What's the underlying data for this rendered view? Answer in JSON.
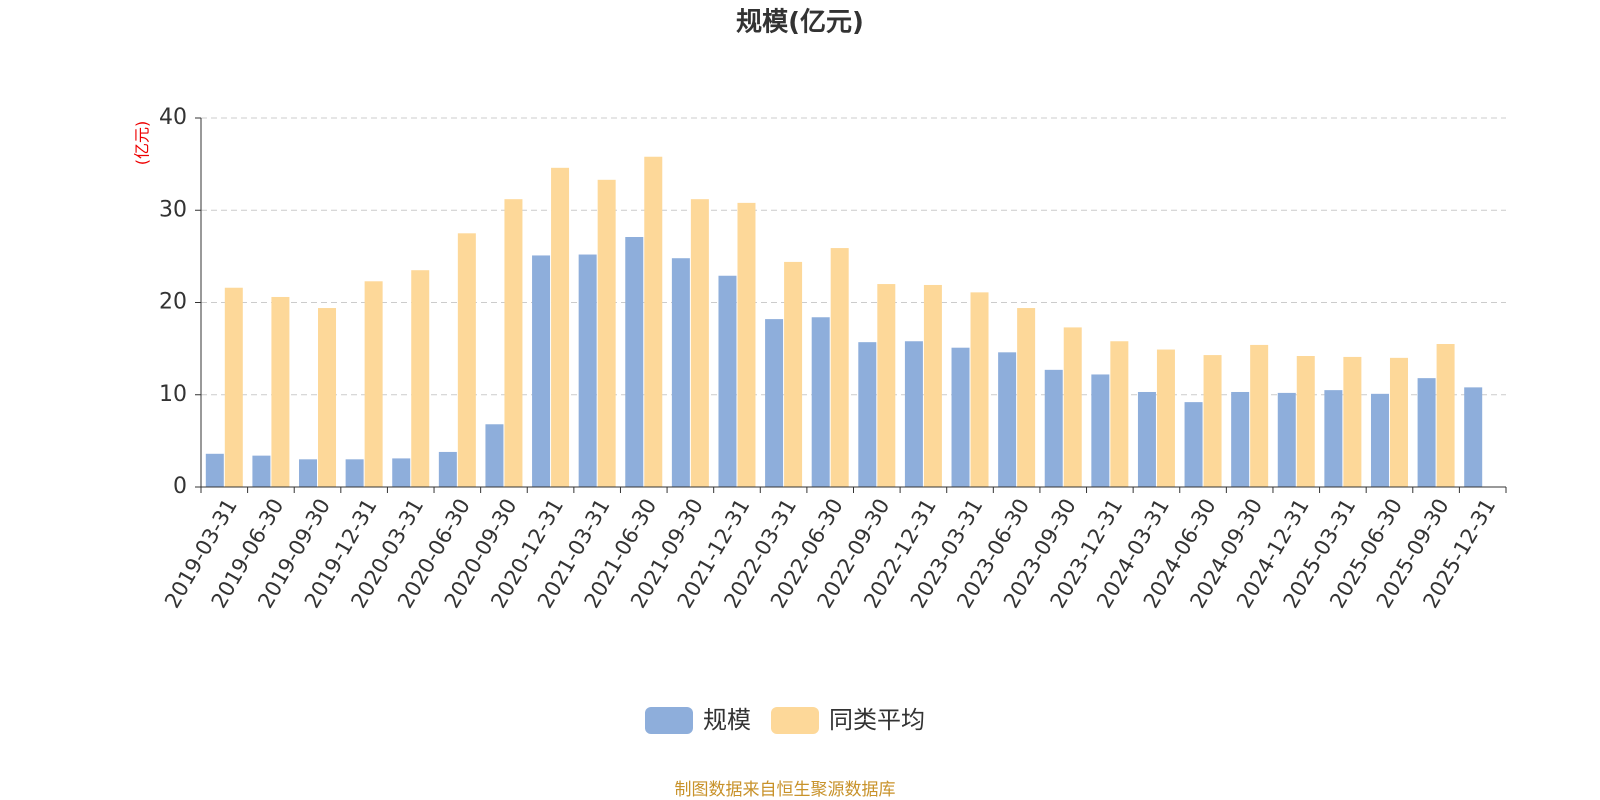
{
  "chart_data": {
    "type": "bar",
    "title": "规模(亿元)",
    "y_label": "(亿元)",
    "source": "制图数据来自恒生聚源数据库",
    "categories": [
      "2019-03-31",
      "2019-06-30",
      "2019-09-30",
      "2019-12-31",
      "2020-03-31",
      "2020-06-30",
      "2020-09-30",
      "2020-12-31",
      "2021-03-31",
      "2021-06-30",
      "2021-09-30",
      "2021-12-31",
      "2022-03-31",
      "2022-06-30",
      "2022-09-30",
      "2022-12-31",
      "2023-03-31",
      "2023-06-30",
      "2023-09-30",
      "2023-12-31",
      "2024-03-31",
      "2024-06-30",
      "2024-09-30",
      "2024-12-31",
      "2025-03-31",
      "2025-06-30",
      "2025-09-30",
      "2025-12-31"
    ],
    "series": [
      {
        "name": "规模",
        "color": "#8eaedb",
        "values": [
          3.6,
          3.4,
          3.0,
          3.0,
          3.1,
          3.8,
          6.8,
          25.1,
          25.2,
          27.1,
          24.8,
          22.9,
          18.2,
          18.4,
          15.7,
          15.8,
          15.1,
          14.6,
          12.7,
          12.2,
          10.3,
          9.2,
          10.3,
          10.2,
          10.5,
          10.1,
          11.8,
          10.8
        ]
      },
      {
        "name": "同类平均",
        "color": "#fdd899",
        "values": [
          21.6,
          20.6,
          19.4,
          22.3,
          23.5,
          27.5,
          31.2,
          34.6,
          33.3,
          35.8,
          31.2,
          30.8,
          24.4,
          25.9,
          22.0,
          21.9,
          21.1,
          19.4,
          17.3,
          15.8,
          14.9,
          14.3,
          15.4,
          14.2,
          14.1,
          14.0,
          15.5,
          null
        ]
      }
    ],
    "ylim": [
      0,
      40
    ],
    "yticks": [
      0,
      10,
      20,
      30,
      40
    ],
    "grid": true
  }
}
